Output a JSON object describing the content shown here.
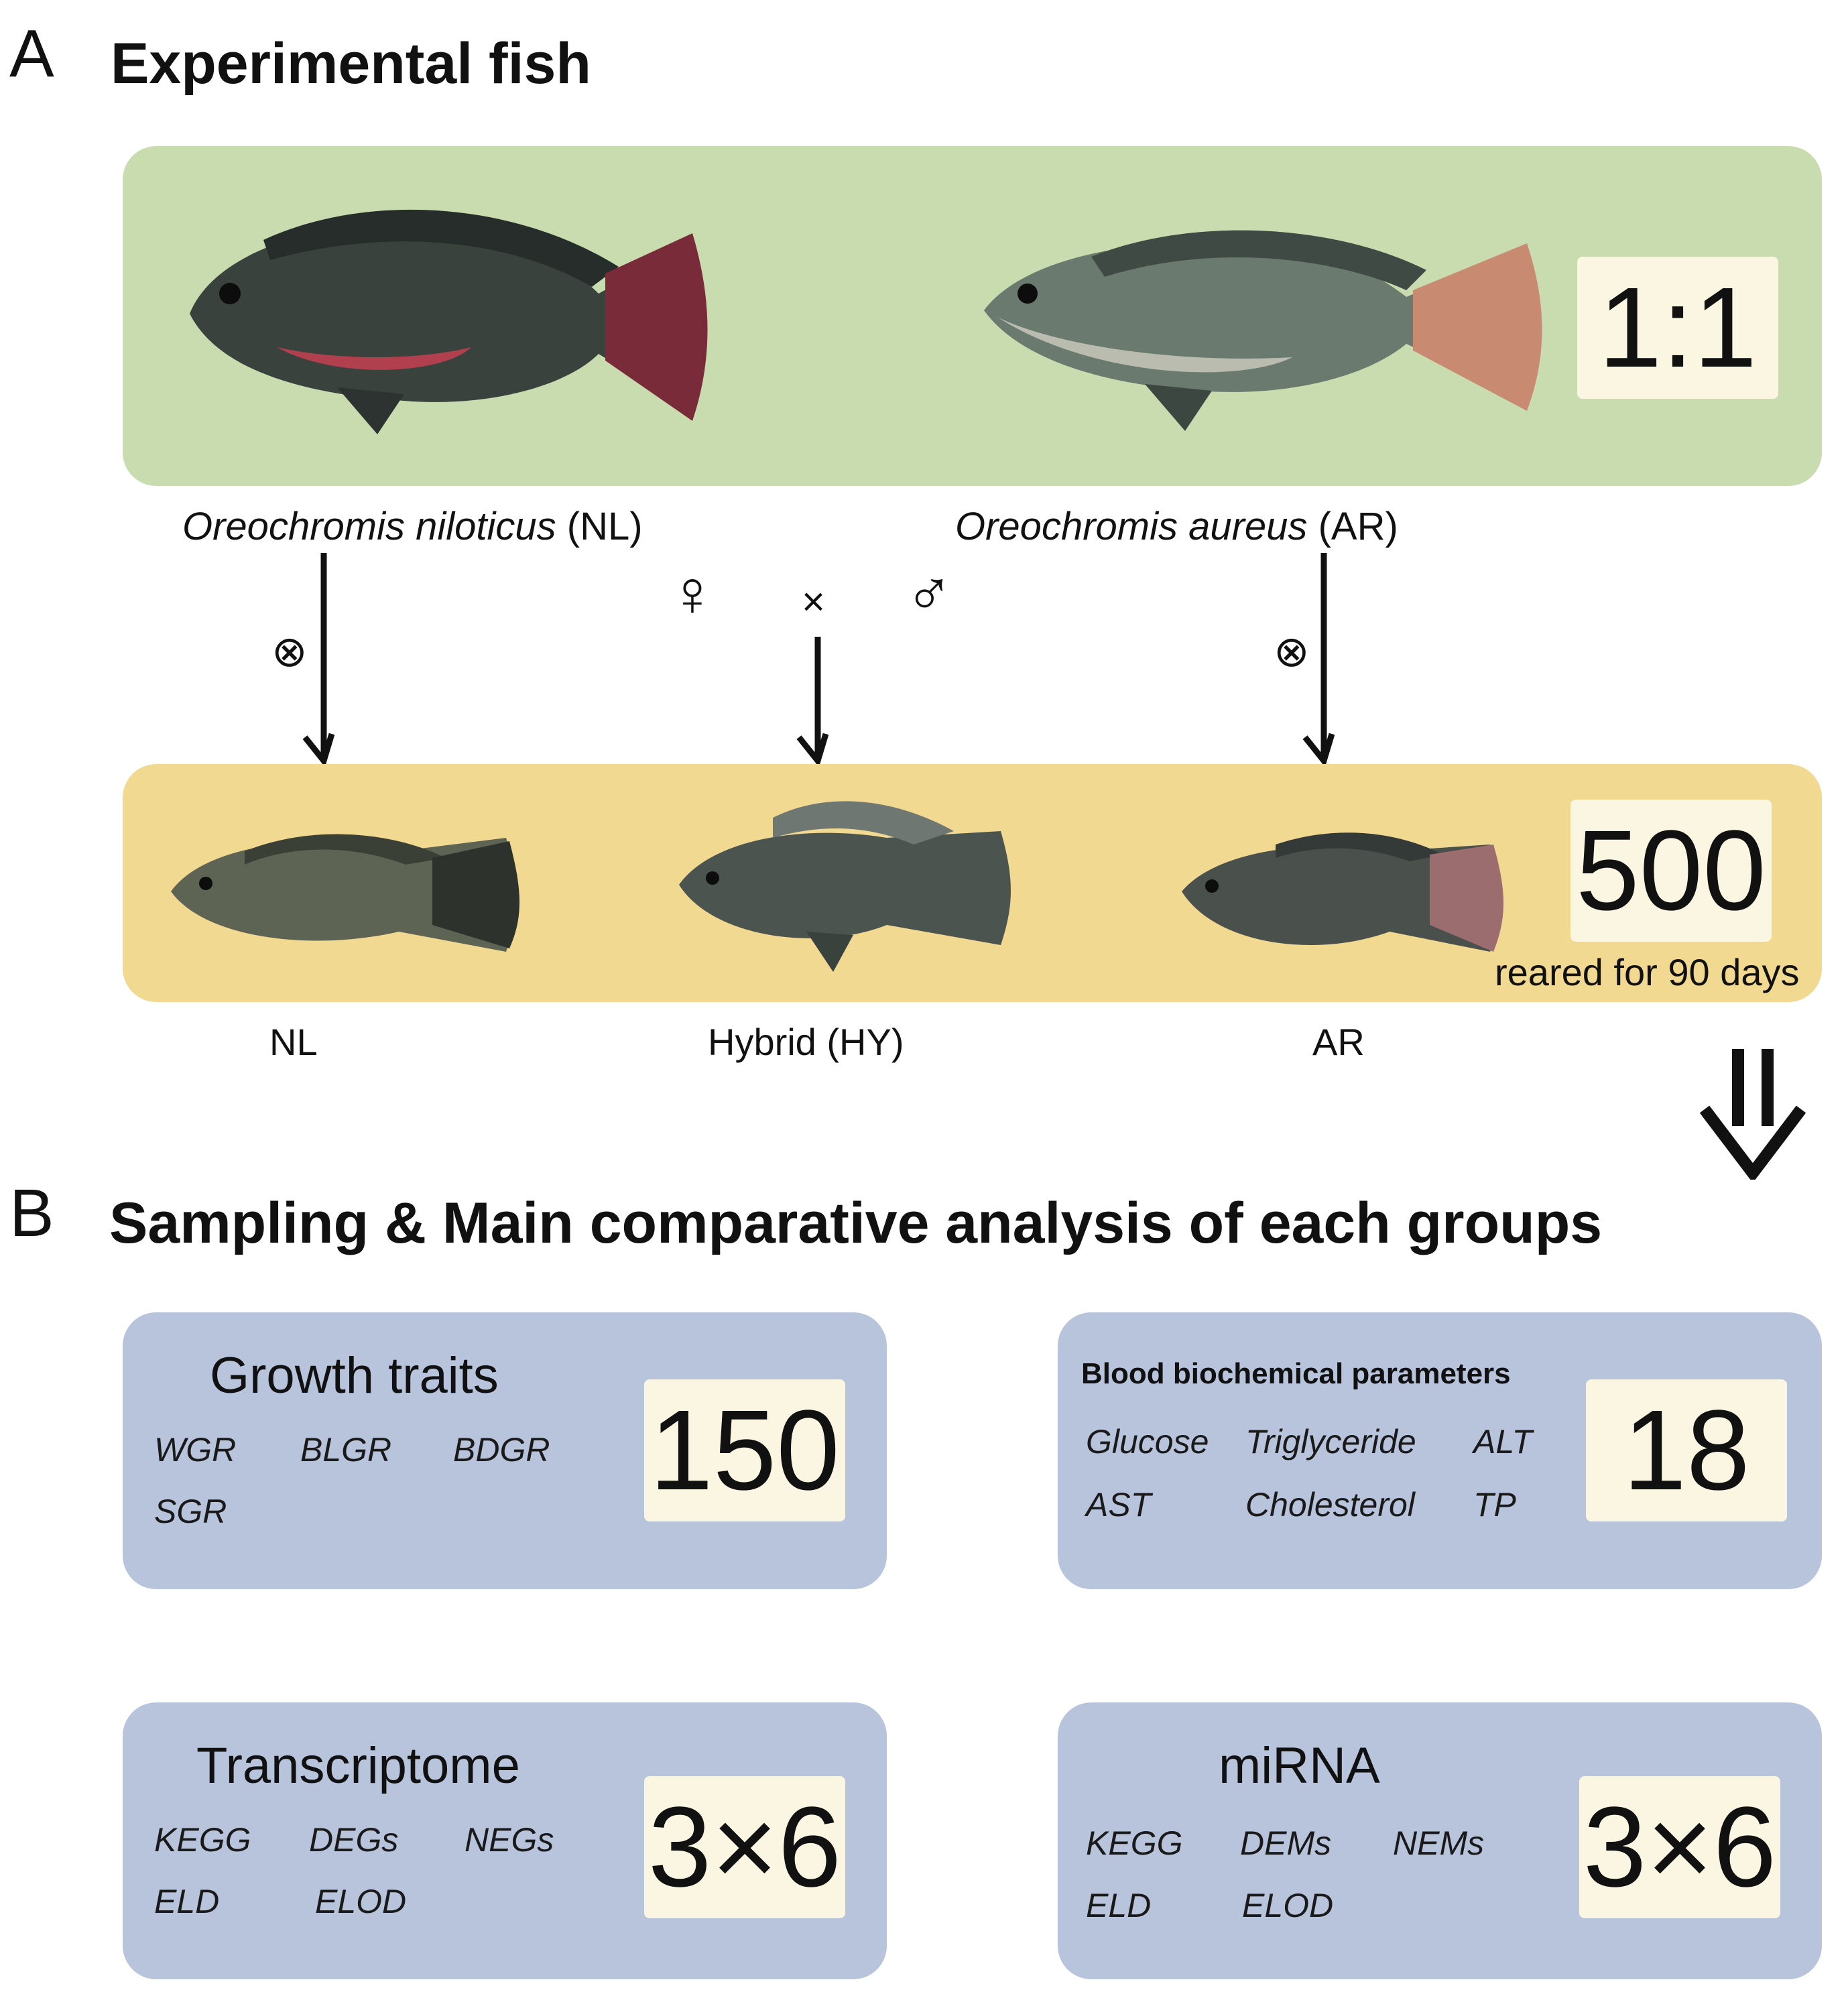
{
  "panel_a": {
    "letter": "A",
    "title": "Experimental fish",
    "ratio_label": "1:1",
    "parents": {
      "nl": {
        "genus": "Oreochromis niloticus",
        "abbr": "(NL)",
        "color": "#2f3633"
      },
      "ar": {
        "genus": "Oreochromis aureus",
        "abbr": "(AR)",
        "color": "#4d5a52"
      }
    },
    "cross": {
      "female_symbol": "♀",
      "times_symbol": "×",
      "male_symbol": "♂",
      "self_symbol": "⊗"
    },
    "offspring": {
      "count_label": "500",
      "note": "reared for 90 days",
      "groups": [
        "NL",
        "Hybrid (HY)",
        "AR"
      ]
    },
    "colors": {
      "green_box": "#c9dcb0",
      "yellow_box": "#f2d991",
      "blue_card": "#b7c4dc",
      "number_box": "#fbf6e2"
    }
  },
  "panel_b": {
    "letter": "B",
    "title": "Sampling & Main comparative analysis of each groups",
    "cards": [
      {
        "title": "Growth traits",
        "count": "150",
        "keywords": [
          "WGR",
          "BLGR",
          "BDGR",
          "SGR"
        ]
      },
      {
        "title": "Blood biochemical parameters",
        "count": "18",
        "keywords": [
          "Glucose",
          "Triglyceride",
          "ALT",
          "AST",
          "Cholesterol",
          "TP"
        ]
      },
      {
        "title": "Transcriptome",
        "count": "3×6",
        "keywords": [
          "KEGG",
          "DEGs",
          "NEGs",
          "ELD",
          "ELOD"
        ]
      },
      {
        "title": "miRNA",
        "count": "3×6",
        "keywords": [
          "KEGG",
          "DEMs",
          "NEMs",
          "ELD",
          "ELOD"
        ]
      }
    ]
  }
}
